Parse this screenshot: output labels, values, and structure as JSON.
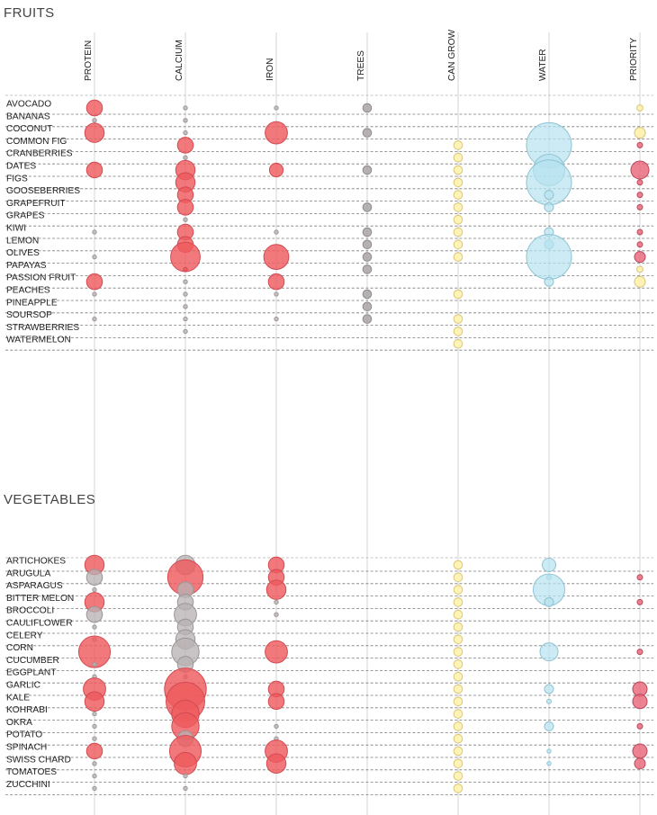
{
  "chart_data": {
    "type": "bubble-matrix",
    "columns": [
      "PROTEIN",
      "CALCIUM",
      "IRON",
      "TREES",
      "CAN GROW",
      "WATER",
      "PRIORITY"
    ],
    "colors": {
      "nutrient_high": "#ee5a5e",
      "nutrient_low": "#b9b2b4",
      "trees": "#a9a5a7",
      "can_grow": "#fff3b2",
      "water": "#b7e3ef",
      "priority": "#e8677a",
      "priority_low": "#fff1b0"
    },
    "value_note": "size = relative magnitude on a 0-10 scale; hue = grey (low) / red (high) for nutrients",
    "sections": [
      {
        "title": "FRUITS",
        "items": [
          {
            "name": "AVOCADO",
            "values": {
              "PROTEIN": [
                2,
                "high"
              ],
              "CALCIUM": [
                1,
                "low"
              ],
              "IRON": [
                1,
                "low"
              ],
              "TREES": [
                3,
                "low"
              ],
              "PRIORITY": [
                1,
                "low"
              ]
            }
          },
          {
            "name": "BANANAS",
            "values": {
              "PROTEIN": [
                1,
                "low"
              ],
              "CALCIUM": [
                0.5,
                "low"
              ]
            }
          },
          {
            "name": "COCONUT",
            "values": {
              "PROTEIN": [
                3,
                "high"
              ],
              "CALCIUM": [
                1,
                "low"
              ],
              "IRON": [
                4,
                "high"
              ],
              "TREES": [
                3,
                "low"
              ],
              "PRIORITY": [
                3,
                "low"
              ]
            }
          },
          {
            "name": "COMMON FIG",
            "values": {
              "CALCIUM": [
                2,
                "high"
              ],
              "CAN GROW": [
                2,
                "grow"
              ],
              "WATER": [
                10,
                "water"
              ],
              "PRIORITY": [
                1,
                "high"
              ]
            }
          },
          {
            "name": "CRANBERRIES",
            "values": {
              "CALCIUM": [
                1,
                "low"
              ],
              "CAN GROW": [
                2,
                "grow"
              ]
            }
          },
          {
            "name": "DATES",
            "values": {
              "PROTEIN": [
                2,
                "high"
              ],
              "CALCIUM": [
                3,
                "high"
              ],
              "IRON": [
                1.5,
                "high"
              ],
              "TREES": [
                3,
                "low"
              ],
              "CAN GROW": [
                2,
                "grow"
              ],
              "WATER": [
                7,
                "water"
              ],
              "PRIORITY": [
                5,
                "high"
              ]
            }
          },
          {
            "name": "FIGS",
            "values": {
              "CALCIUM": [
                3,
                "high"
              ],
              "CAN GROW": [
                2,
                "grow"
              ],
              "WATER": [
                10,
                "water"
              ],
              "PRIORITY": [
                1,
                "high"
              ]
            }
          },
          {
            "name": "GOOSEBERRIES",
            "values": {
              "CALCIUM": [
                2,
                "high"
              ],
              "CAN GROW": [
                2,
                "grow"
              ],
              "WATER": [
                2,
                "water"
              ],
              "PRIORITY": [
                1,
                "high"
              ]
            }
          },
          {
            "name": "GRAPEFRUIT",
            "values": {
              "CALCIUM": [
                2,
                "high"
              ],
              "TREES": [
                3,
                "low"
              ],
              "CAN GROW": [
                2,
                "grow"
              ],
              "WATER": [
                2,
                "water"
              ],
              "PRIORITY": [
                1,
                "high"
              ]
            }
          },
          {
            "name": "GRAPES",
            "values": {
              "CALCIUM": [
                1,
                "low"
              ],
              "CAN GROW": [
                2,
                "grow"
              ]
            }
          },
          {
            "name": "KIWI",
            "values": {
              "PROTEIN": [
                1,
                "low"
              ],
              "CALCIUM": [
                2,
                "high"
              ],
              "IRON": [
                1,
                "low"
              ],
              "TREES": [
                3,
                "low"
              ],
              "CAN GROW": [
                2,
                "grow"
              ],
              "WATER": [
                2,
                "water"
              ],
              "PRIORITY": [
                1,
                "high"
              ]
            }
          },
          {
            "name": "LEMON",
            "values": {
              "CALCIUM": [
                2,
                "high"
              ],
              "TREES": [
                3,
                "low"
              ],
              "CAN GROW": [
                2,
                "grow"
              ],
              "WATER": [
                2,
                "water"
              ],
              "PRIORITY": [
                1,
                "high"
              ]
            }
          },
          {
            "name": "OLIVES",
            "values": {
              "PROTEIN": [
                1,
                "low"
              ],
              "CALCIUM": [
                7,
                "high"
              ],
              "IRON": [
                5,
                "high"
              ],
              "TREES": [
                3,
                "low"
              ],
              "CAN GROW": [
                2,
                "grow"
              ],
              "WATER": [
                10,
                "water"
              ],
              "PRIORITY": [
                3,
                "high"
              ]
            }
          },
          {
            "name": "PAPAYAS",
            "values": {
              "CALCIUM": [
                1,
                "high"
              ],
              "TREES": [
                3,
                "low"
              ],
              "PRIORITY": [
                0.5,
                "low"
              ]
            }
          },
          {
            "name": "PASSION FRUIT",
            "values": {
              "PROTEIN": [
                2,
                "high"
              ],
              "CALCIUM": [
                1,
                "low"
              ],
              "IRON": [
                2,
                "high"
              ],
              "WATER": [
                2,
                "water"
              ],
              "PRIORITY": [
                3,
                "low"
              ]
            }
          },
          {
            "name": "PEACHES",
            "values": {
              "PROTEIN": [
                1,
                "low"
              ],
              "CALCIUM": [
                1,
                "low"
              ],
              "IRON": [
                1,
                "low"
              ],
              "TREES": [
                3,
                "low"
              ],
              "CAN GROW": [
                2,
                "grow"
              ]
            }
          },
          {
            "name": "PINEAPPLE",
            "values": {
              "CALCIUM": [
                1,
                "low"
              ],
              "TREES": [
                3,
                "low"
              ]
            }
          },
          {
            "name": "SOURSOP",
            "values": {
              "PROTEIN": [
                1,
                "low"
              ],
              "CALCIUM": [
                1,
                "low"
              ],
              "IRON": [
                1,
                "low"
              ],
              "TREES": [
                3,
                "low"
              ],
              "CAN GROW": [
                2,
                "grow"
              ]
            }
          },
          {
            "name": "STRAWBERRIES",
            "values": {
              "CALCIUM": [
                1,
                "low"
              ],
              "CAN GROW": [
                2,
                "grow"
              ]
            }
          },
          {
            "name": "WATERMELON",
            "values": {
              "CAN GROW": [
                2,
                "grow"
              ]
            }
          }
        ]
      },
      {
        "title": "VEGETABLES",
        "items": [
          {
            "name": "ARTICHOKES",
            "values": {
              "PROTEIN": [
                3,
                "high"
              ],
              "CALCIUM": [
                3,
                "low"
              ],
              "IRON": [
                2,
                "high"
              ],
              "CAN GROW": [
                2,
                "grow"
              ],
              "WATER": [
                3,
                "water"
              ]
            }
          },
          {
            "name": "ARUGULA",
            "values": {
              "PROTEIN": [
                2,
                "low"
              ],
              "CALCIUM": [
                10,
                "high"
              ],
              "IRON": [
                2,
                "high"
              ],
              "CAN GROW": [
                2,
                "grow"
              ],
              "WATER": [
                1,
                "water"
              ],
              "PRIORITY": [
                1,
                "high"
              ]
            }
          },
          {
            "name": "ASPARAGUS",
            "values": {
              "PROTEIN": [
                1,
                "low"
              ],
              "CALCIUM": [
                2,
                "low"
              ],
              "IRON": [
                3,
                "high"
              ],
              "CAN GROW": [
                2,
                "grow"
              ],
              "WATER": [
                7,
                "water"
              ]
            }
          },
          {
            "name": "BITTER MELON",
            "values": {
              "PROTEIN": [
                3,
                "high"
              ],
              "CALCIUM": [
                2,
                "low"
              ],
              "IRON": [
                1,
                "low"
              ],
              "CAN GROW": [
                2,
                "grow"
              ],
              "WATER": [
                2,
                "water"
              ],
              "PRIORITY": [
                1,
                "high"
              ]
            }
          },
          {
            "name": "BROCCOLI",
            "values": {
              "PROTEIN": [
                2,
                "low"
              ],
              "CALCIUM": [
                4,
                "low"
              ],
              "IRON": [
                1,
                "low"
              ],
              "CAN GROW": [
                2,
                "grow"
              ]
            }
          },
          {
            "name": "CAULIFLOWER",
            "values": {
              "PROTEIN": [
                1,
                "low"
              ],
              "CALCIUM": [
                2,
                "low"
              ],
              "CAN GROW": [
                2,
                "grow"
              ]
            }
          },
          {
            "name": "CELERY",
            "values": {
              "PROTEIN": [
                1,
                "low"
              ],
              "CALCIUM": [
                3,
                "low"
              ],
              "CAN GROW": [
                2,
                "grow"
              ]
            }
          },
          {
            "name": "CORN",
            "values": {
              "PROTEIN": [
                8,
                "high"
              ],
              "CALCIUM": [
                6,
                "low"
              ],
              "IRON": [
                4,
                "high"
              ],
              "CAN GROW": [
                2,
                "grow"
              ],
              "WATER": [
                4,
                "water"
              ],
              "PRIORITY": [
                1,
                "high"
              ]
            }
          },
          {
            "name": "CUCUMBER",
            "values": {
              "PROTEIN": [
                1,
                "low"
              ],
              "CALCIUM": [
                2,
                "low"
              ],
              "CAN GROW": [
                2,
                "grow"
              ]
            }
          },
          {
            "name": "EGGPLANT",
            "values": {
              "PROTEIN": [
                0.5,
                "low"
              ],
              "CALCIUM": [
                1,
                "low"
              ],
              "CAN GROW": [
                2,
                "grow"
              ]
            }
          },
          {
            "name": "GARLIC",
            "values": {
              "PROTEIN": [
                4,
                "high"
              ],
              "CALCIUM": [
                14,
                "high"
              ],
              "IRON": [
                2,
                "high"
              ],
              "CAN GROW": [
                2,
                "grow"
              ],
              "WATER": [
                2,
                "water"
              ],
              "PRIORITY": [
                4,
                "high"
              ]
            }
          },
          {
            "name": "KALE",
            "values": {
              "PROTEIN": [
                3,
                "high"
              ],
              "CALCIUM": [
                12,
                "high"
              ],
              "IRON": [
                2,
                "high"
              ],
              "CAN GROW": [
                2,
                "grow"
              ],
              "WATER": [
                1,
                "water"
              ],
              "PRIORITY": [
                4,
                "high"
              ]
            }
          },
          {
            "name": "KOHRABI",
            "values": {
              "PROTEIN": [
                1,
                "low"
              ],
              "CALCIUM": [
                6,
                "high"
              ],
              "CAN GROW": [
                2,
                "grow"
              ]
            }
          },
          {
            "name": "OKRA",
            "values": {
              "PROTEIN": [
                1,
                "low"
              ],
              "CALCIUM": [
                6,
                "high"
              ],
              "IRON": [
                1,
                "low"
              ],
              "CAN GROW": [
                2,
                "grow"
              ],
              "WATER": [
                2,
                "water"
              ],
              "PRIORITY": [
                1,
                "high"
              ]
            }
          },
          {
            "name": "POTATO",
            "values": {
              "PROTEIN": [
                1,
                "low"
              ],
              "CALCIUM": [
                2,
                "low"
              ],
              "IRON": [
                1,
                "low"
              ],
              "CAN GROW": [
                2,
                "grow"
              ]
            }
          },
          {
            "name": "SPINACH",
            "values": {
              "PROTEIN": [
                2,
                "high"
              ],
              "CALCIUM": [
                8,
                "high"
              ],
              "IRON": [
                4,
                "high"
              ],
              "CAN GROW": [
                2,
                "grow"
              ],
              "WATER": [
                0.5,
                "water"
              ],
              "PRIORITY": [
                4,
                "high"
              ]
            }
          },
          {
            "name": "SWISS CHARD",
            "values": {
              "PROTEIN": [
                1,
                "low"
              ],
              "CALCIUM": [
                4,
                "high"
              ],
              "IRON": [
                3,
                "high"
              ],
              "CAN GROW": [
                2,
                "grow"
              ],
              "WATER": [
                0.5,
                "water"
              ],
              "PRIORITY": [
                3,
                "high"
              ]
            }
          },
          {
            "name": "TOMATOES",
            "values": {
              "PROTEIN": [
                1,
                "low"
              ],
              "CALCIUM": [
                1,
                "low"
              ],
              "CAN GROW": [
                2,
                "grow"
              ]
            }
          },
          {
            "name": "ZUCCHINI",
            "values": {
              "PROTEIN": [
                1,
                "low"
              ],
              "CALCIUM": [
                1,
                "low"
              ],
              "CAN GROW": [
                2,
                "grow"
              ]
            }
          }
        ]
      }
    ]
  }
}
